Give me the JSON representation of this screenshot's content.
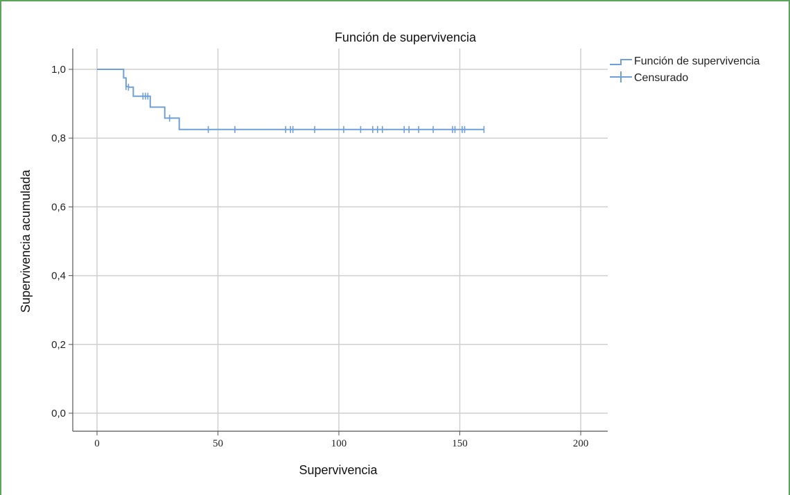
{
  "chart_data": {
    "type": "line",
    "title": "Función de supervivencia",
    "xlabel": "Supervivencia",
    "ylabel": "Supervivencia acumulada",
    "xlim": [
      0,
      200
    ],
    "ylim": [
      0,
      1
    ],
    "x_ticks": [
      "0",
      "50",
      "100",
      "150",
      "200"
    ],
    "y_ticks": [
      "0,0",
      "0,2",
      "0,4",
      "0,6",
      "0,8",
      "1,0"
    ],
    "grid": true,
    "legend_position": "top-right",
    "legend": [
      "Función de supervivencia",
      "Censurado"
    ],
    "series_color": "#6f9fd8",
    "survival_steps": {
      "x": [
        0,
        11,
        12,
        13,
        15,
        22,
        28,
        34,
        160
      ],
      "y": [
        1.0,
        0.975,
        0.95,
        0.948,
        0.922,
        0.89,
        0.858,
        0.825,
        0.825
      ]
    },
    "censored": {
      "x": [
        12,
        13,
        19,
        20,
        21,
        30,
        46,
        57,
        78,
        80,
        81,
        90,
        102,
        109,
        114,
        116,
        118,
        127,
        129,
        133,
        139,
        147,
        148,
        151,
        152,
        160
      ],
      "y": [
        0.95,
        0.948,
        0.922,
        0.922,
        0.922,
        0.858,
        0.825,
        0.825,
        0.825,
        0.825,
        0.825,
        0.825,
        0.825,
        0.825,
        0.825,
        0.825,
        0.825,
        0.825,
        0.825,
        0.825,
        0.825,
        0.825,
        0.825,
        0.825,
        0.825,
        0.825
      ]
    }
  }
}
